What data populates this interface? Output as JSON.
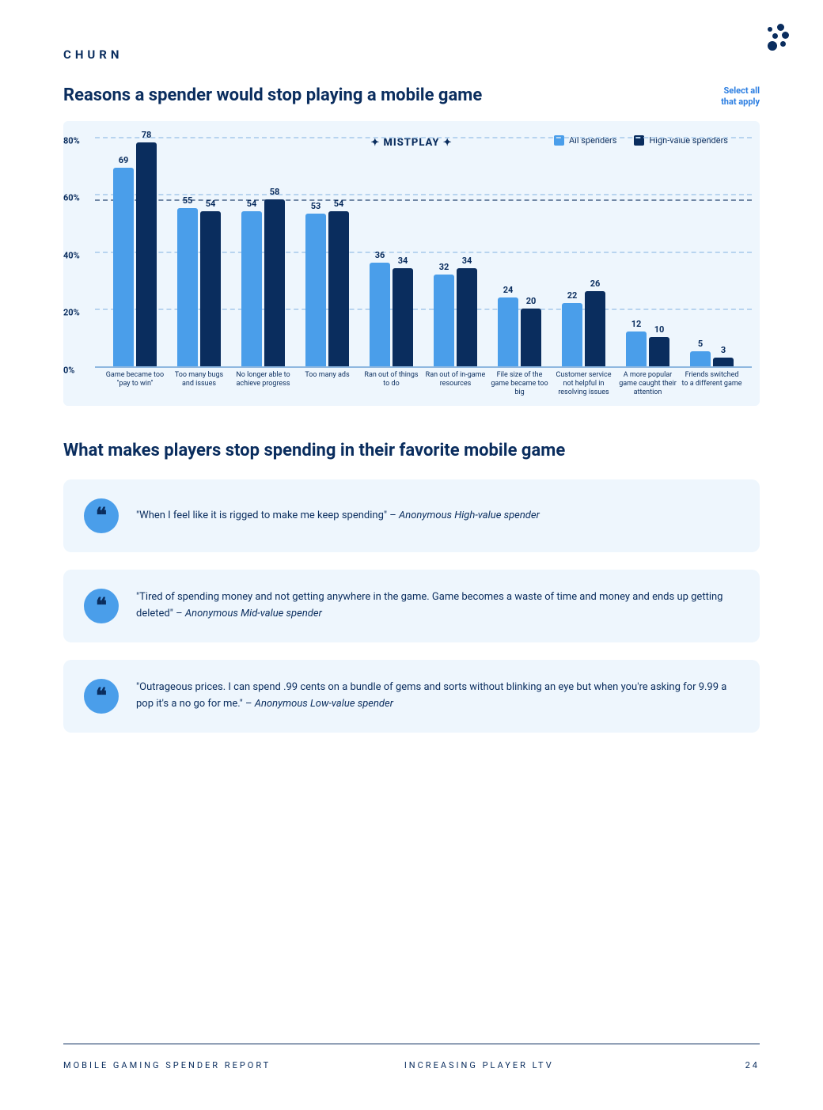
{
  "section_label": "CHURN",
  "chart": {
    "title": "Reasons a spender would stop playing a mobile game",
    "select_note_line1": "Select all",
    "select_note_line2": "that apply",
    "watermark": "✦ MISTPLAY ✦",
    "type": "bar",
    "ymax": 80,
    "ytick_step": 20,
    "yticks": [
      "0%",
      "20%",
      "40%",
      "60%",
      "80%"
    ],
    "background_color": "#eef6fd",
    "grid_color": "#b8d4ef",
    "reference_line_value": 58,
    "reference_line_color": "#0a2d5e",
    "colors": {
      "all": "#4a9eea",
      "high": "#0a2d5e"
    },
    "legend": [
      {
        "label": "All spenders",
        "color": "#4a9eea"
      },
      {
        "label": "High-value spenders",
        "color": "#0a2d5e"
      }
    ],
    "categories": [
      {
        "label": "Game became too \"pay to win\"",
        "all": 69,
        "high": 78
      },
      {
        "label": "Too many bugs and issues",
        "all": 55,
        "high": 54
      },
      {
        "label": "No longer able to achieve progress",
        "all": 54,
        "high": 58
      },
      {
        "label": "Too many ads",
        "all": 53,
        "high": 54
      },
      {
        "label": "Ran out of things to do",
        "all": 36,
        "high": 34
      },
      {
        "label": "Ran out of in-game resources",
        "all": 32,
        "high": 34
      },
      {
        "label": "File size of the game became too big",
        "all": 24,
        "high": 20
      },
      {
        "label": "Customer service not helpful in resolving issues",
        "all": 22,
        "high": 26
      },
      {
        "label": "A more popular game caught their attention",
        "all": 12,
        "high": 10
      },
      {
        "label": "Friends switched to a different game",
        "all": 5,
        "high": 3
      }
    ]
  },
  "subhead": "What makes players stop spending in their favorite mobile game",
  "quotes": [
    {
      "text": "\"When I feel like it is rigged to make me keep spending\" – ",
      "attr": "Anonymous High-value spender"
    },
    {
      "text": "\"Tired of spending money and not getting anywhere in the game. Game becomes a waste of time and money and ends up getting deleted\" – ",
      "attr": "Anonymous Mid-value spender"
    },
    {
      "text": "\"Outrageous prices. I can spend .99 cents on a bundle of gems and sorts without blinking an eye but when you're asking for 9.99 a pop it's a no go for me.\" – ",
      "attr": "Anonymous Low-value spender"
    }
  ],
  "footer": {
    "left": "MOBILE GAMING SPENDER REPORT",
    "mid": "INCREASING PLAYER LTV",
    "page": "24"
  }
}
